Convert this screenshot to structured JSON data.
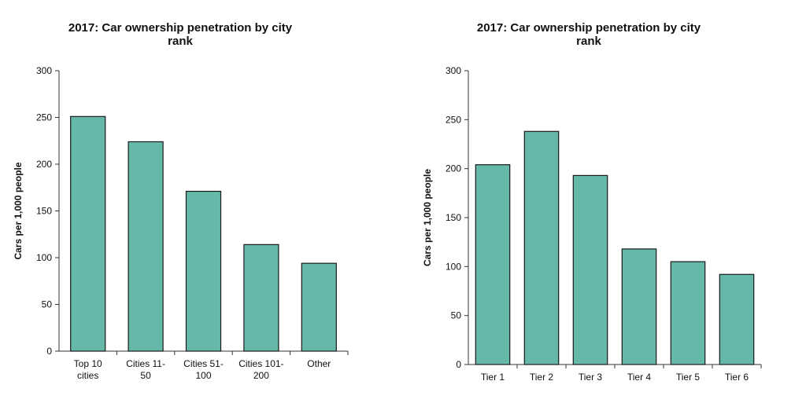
{
  "chart_data": [
    {
      "type": "bar",
      "title": "2017:  Car ownership penetration by city rank",
      "xlabel": "",
      "ylabel": "Cars per 1,000 people",
      "categories": [
        "Top 10 cities",
        "Cities 11-50",
        "Cities 51-100",
        "Cities 101-200",
        "Other"
      ],
      "values": [
        251,
        224,
        171,
        114,
        94
      ],
      "ylim": [
        0,
        300
      ],
      "yticks": [
        0,
        50,
        100,
        150,
        200,
        250,
        300
      ],
      "bar_color": "#66b8a9",
      "grid": false,
      "legend": "none"
    },
    {
      "type": "bar",
      "title": "2017:  Car ownership penetration by city rank",
      "xlabel": "",
      "ylabel": "Cars per 1,000 people",
      "categories": [
        "Tier 1",
        "Tier 2",
        "Tier 3",
        "Tier 4",
        "Tier 5",
        "Tier 6"
      ],
      "values": [
        204,
        238,
        193,
        118,
        105,
        92
      ],
      "ylim": [
        0,
        300
      ],
      "yticks": [
        0,
        50,
        100,
        150,
        200,
        250,
        300
      ],
      "bar_color": "#66b8a9",
      "grid": false,
      "legend": "none"
    }
  ]
}
